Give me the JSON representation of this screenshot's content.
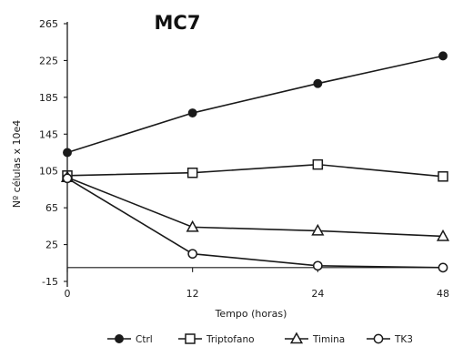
{
  "chart_data": {
    "type": "line",
    "title": "MC7",
    "xlabel": "Tempo (horas)",
    "ylabel": "Nº células x 10e4",
    "x": [
      0,
      12,
      24,
      48
    ],
    "x_tick_labels": [
      "0",
      "12",
      "24",
      "48"
    ],
    "x_axis_spacing": "categorical",
    "yticks": [
      -15,
      25,
      65,
      105,
      145,
      185,
      225,
      265
    ],
    "ylim": [
      -15,
      265
    ],
    "grid": false,
    "legend_position": "bottom",
    "series": [
      {
        "name": "Ctrl",
        "marker": "filled-circle",
        "values": [
          125,
          168,
          200,
          230
        ]
      },
      {
        "name": "Triptofano",
        "marker": "open-square",
        "values": [
          100,
          103,
          112,
          99
        ]
      },
      {
        "name": "Timina",
        "marker": "open-triangle",
        "values": [
          98,
          44,
          40,
          34
        ]
      },
      {
        "name": "TK3",
        "marker": "open-circle",
        "values": [
          97,
          15,
          2,
          0
        ]
      }
    ]
  }
}
